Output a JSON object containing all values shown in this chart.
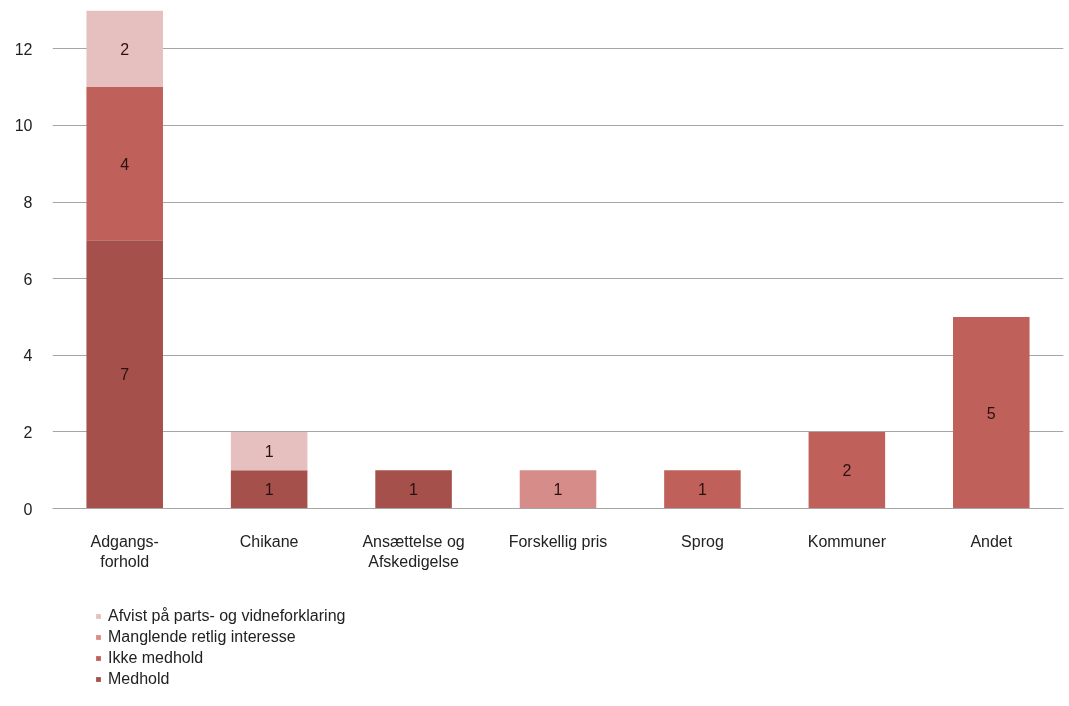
{
  "chart_data": {
    "type": "bar",
    "stacked": true,
    "categories": [
      "Adgangs-\nforhold",
      "Chikane",
      "Ansættelse og\nAfskedigelse",
      "Forskellig pris",
      "Sprog",
      "Kommuner",
      "Andet"
    ],
    "series": [
      {
        "name": "Medhold",
        "color": "#a5504b",
        "values": [
          7,
          1,
          1,
          null,
          null,
          null,
          null
        ]
      },
      {
        "name": "Ikke medhold",
        "color": "#c0605a",
        "values": [
          4,
          null,
          null,
          null,
          1,
          2,
          5
        ]
      },
      {
        "name": "Manglende retlig interesse",
        "color": "#d68c88",
        "values": [
          null,
          null,
          null,
          1,
          null,
          null,
          null
        ]
      },
      {
        "name": "Afvist på parts- og vidneforklaring",
        "color": "#e6c0be",
        "values": [
          2,
          1,
          null,
          null,
          null,
          null,
          null
        ]
      }
    ],
    "ylim": [
      0,
      13
    ],
    "yticks": [
      0,
      2,
      4,
      6,
      8,
      10,
      12
    ],
    "grid": "y",
    "legend": "bottom left",
    "data_labels": true
  }
}
